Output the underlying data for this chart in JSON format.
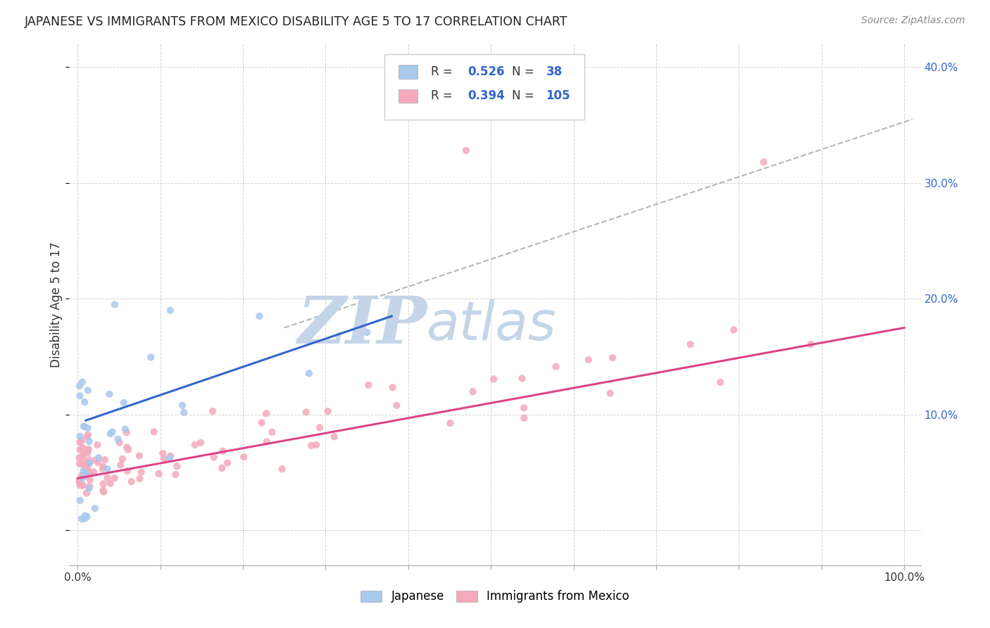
{
  "title": "JAPANESE VS IMMIGRANTS FROM MEXICO DISABILITY AGE 5 TO 17 CORRELATION CHART",
  "source": "Source: ZipAtlas.com",
  "ylabel": "Disability Age 5 to 17",
  "xlim": [
    -0.01,
    1.02
  ],
  "ylim": [
    -0.03,
    0.42
  ],
  "japanese_R": 0.526,
  "japanese_N": 38,
  "mexico_R": 0.394,
  "mexico_N": 105,
  "japanese_color": "#A8C8EE",
  "mexico_color": "#F4AABB",
  "japanese_line_color": "#3366CC",
  "mexico_line_color": "#DD4488",
  "trend_line_color": "#AAAAAA",
  "watermark_color": "#C8D8EE",
  "background_color": "#FFFFFF",
  "jp_line_x0": 0.01,
  "jp_line_y0": 0.095,
  "jp_line_x1": 0.38,
  "jp_line_y1": 0.185,
  "mx_line_x0": 0.0,
  "mx_line_y0": 0.045,
  "mx_line_x1": 1.0,
  "mx_line_y1": 0.175,
  "trend_x0": 0.25,
  "trend_y0": 0.175,
  "trend_x1": 1.01,
  "trend_y1": 0.355
}
